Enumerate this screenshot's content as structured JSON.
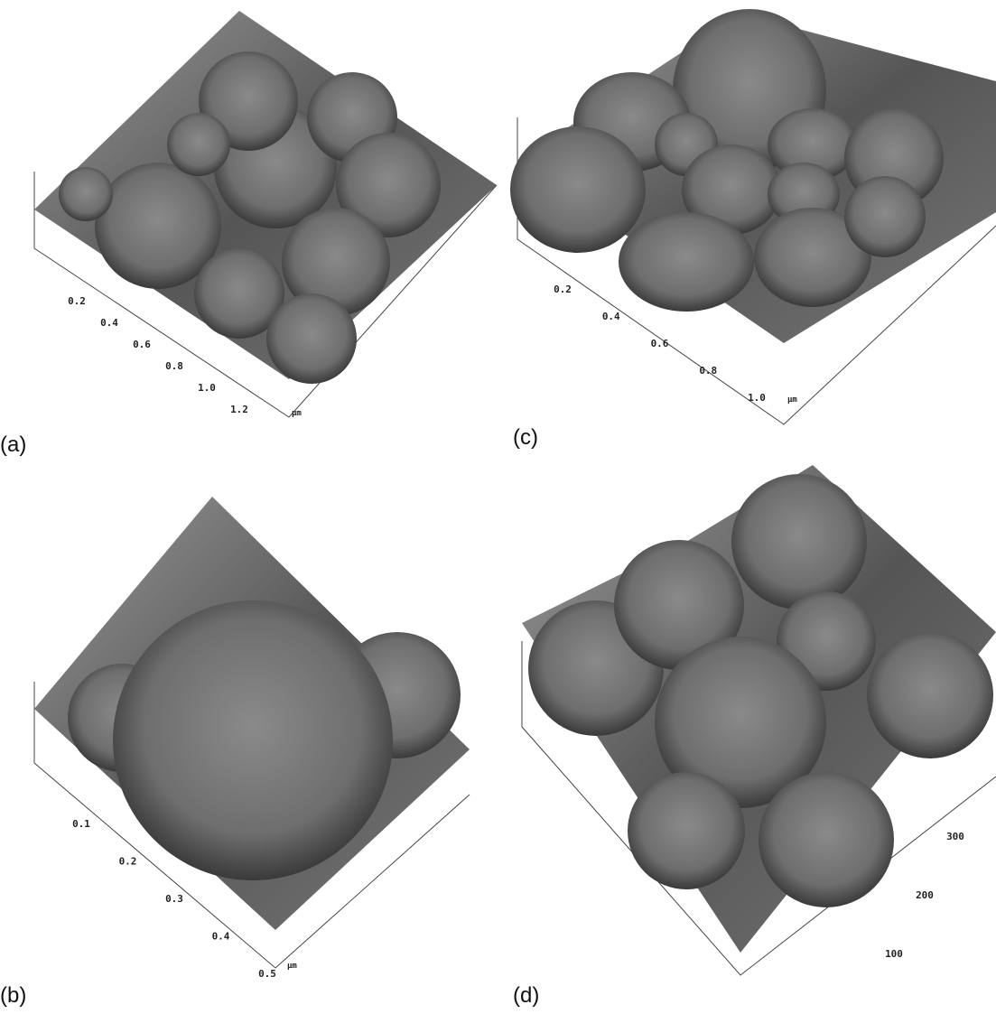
{
  "panels": [
    {
      "label": "(a)",
      "ticks": [
        "0.2",
        "0.4",
        "0.6",
        "0.8",
        "1.0",
        "1.2"
      ],
      "unit": "μm"
    },
    {
      "label": "(b)",
      "ticks": [
        "0.1",
        "0.2",
        "0.3",
        "0.4",
        "0.5"
      ],
      "unit": "μm"
    },
    {
      "label": "(c)",
      "ticks": [
        "0.2",
        "0.4",
        "0.6",
        "0.8",
        "1.0"
      ],
      "unit": "μm"
    },
    {
      "label": "(d)",
      "ticks": [
        "100",
        "200",
        "300"
      ]
    }
  ]
}
